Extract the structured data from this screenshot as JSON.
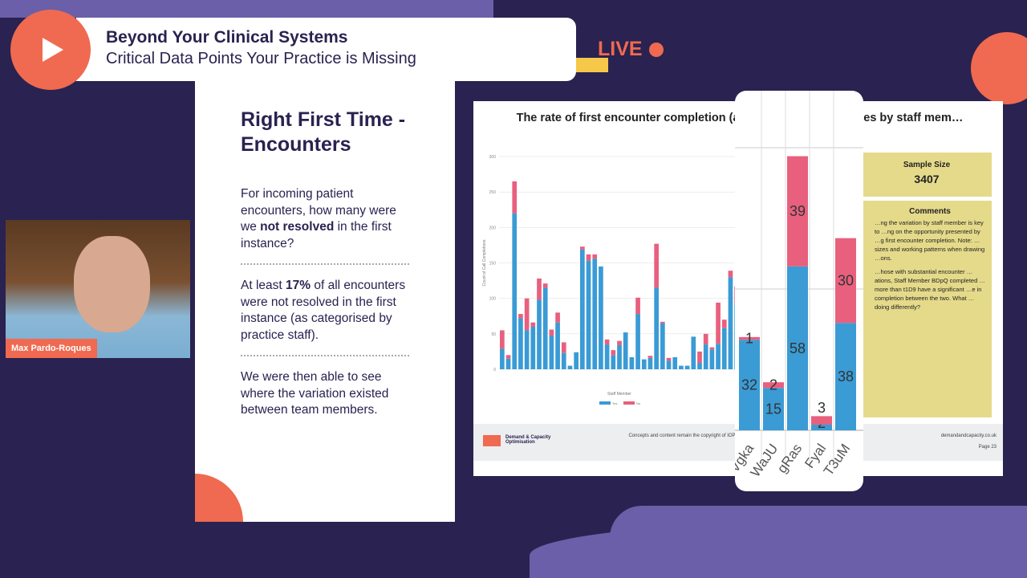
{
  "header": {
    "title": "Beyond Your Clinical Systems",
    "subtitle": "Critical Data Points Your Practice is Missing",
    "live": "LIVE"
  },
  "webcam": {
    "name": "Max Pardo-Roques"
  },
  "left_slide": {
    "heading": "Right First Time - Encounters",
    "p1_a": "For incoming patient encounters, how many were we ",
    "p1_b": "not resolved",
    "p1_c": " in the first instance?",
    "p2_a": "At least ",
    "p2_b": "17%",
    "p2_c": " of all encounters were not resolved in the first instance (as categorised by practice staff).",
    "p3": "We were then able to see where the variation existed between team members."
  },
  "right_slide": {
    "title": "The rate of first encounter completion (avoid… …acks etc) varies by staff mem…",
    "sample_label": "Sample Size",
    "sample_value": "3407",
    "comments_label": "Comments",
    "comments_1": "…ng the variation by staff member is key to …ng on the opportunity presented by …g first encounter completion. Note: …sizes and working patterns when drawing …ons.",
    "comments_2": "…hose with substantial encounter …ations, Staff Member BDpQ completed …more than t1D9 have a significant …e in completion between the two. What …doing differently?",
    "footer_brand": "Demand & Capacity Optimisation",
    "footer_copy": "Concepts and content remain the copyright of IOP Ltd 2023. For y… Ltd is not responsible for any actions re…",
    "footer_site": "demandandcapacity.co.uk",
    "footer_page": "Page 23"
  },
  "chart_data": [
    {
      "type": "bar",
      "stacked": true,
      "xlabel": "Staff Member",
      "ylabel": "Count of Call Completions",
      "ylim": [
        0,
        300
      ],
      "yticks": [
        0,
        50,
        100,
        150,
        200,
        250,
        300
      ],
      "grid": true,
      "legend": "bottom",
      "series": [
        {
          "name": "Yes",
          "color": "#3a9bd5",
          "values": [
            29,
            15,
            220,
            72,
            55,
            60,
            98,
            115,
            47,
            66,
            23,
            5,
            24,
            169,
            153,
            156,
            145,
            35,
            20,
            34,
            52,
            17,
            78,
            14,
            16,
            115,
            65,
            12,
            17,
            5,
            5,
            46,
            9,
            35,
            28,
            36,
            58,
            130,
            93
          ]
        },
        {
          "name": "No",
          "color": "#e8607e",
          "values": [
            26,
            5,
            45,
            6,
            45,
            6,
            30,
            6,
            9,
            14,
            15,
            0,
            0,
            4,
            9,
            6,
            0,
            7,
            7,
            6,
            0,
            0,
            23,
            0,
            3,
            62,
            2,
            4,
            0,
            0,
            0,
            0,
            16,
            15,
            3,
            58,
            12,
            9,
            24
          ]
        }
      ]
    },
    {
      "type": "bar",
      "stacked": true,
      "categories": [
        "Vgka",
        "WaJU",
        "gRas",
        "Fyal",
        "T3uM"
      ],
      "ylim": [
        0,
        100
      ],
      "series": [
        {
          "values": [
            32,
            15,
            58,
            2,
            38
          ],
          "color": "#3a9bd5"
        },
        {
          "values": [
            1,
            2,
            39,
            3,
            30
          ],
          "color": "#e8607e"
        }
      ]
    }
  ]
}
